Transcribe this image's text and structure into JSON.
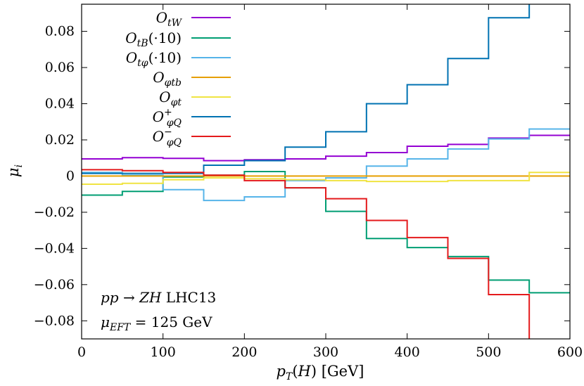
{
  "chart_data": {
    "type": "line",
    "title": "",
    "xlabel": "p_T(H) [GeV]",
    "ylabel": "μ_i",
    "xlim": [
      0,
      600
    ],
    "ylim": [
      -0.09,
      0.095
    ],
    "x_ticks": [
      0,
      100,
      200,
      300,
      400,
      500,
      600
    ],
    "x_tick_labels": [
      "0",
      "100",
      "200",
      "300",
      "400",
      "500",
      "600"
    ],
    "y_ticks": [
      -0.08,
      -0.06,
      -0.04,
      -0.02,
      0,
      0.02,
      0.04,
      0.06,
      0.08
    ],
    "y_tick_labels": [
      "−0.08",
      "−0.06",
      "−0.04",
      "−0.02",
      "0",
      "0.02",
      "0.04",
      "0.06",
      "0.08"
    ],
    "grid": false,
    "legend_position": "top-left",
    "step_style": "histogram",
    "bin_edges": [
      0,
      50,
      100,
      150,
      200,
      250,
      300,
      350,
      400,
      450,
      500,
      550,
      600
    ],
    "annotations": [
      "pp → ZH LHC13",
      "μ_EFT = 125 GeV"
    ],
    "series": [
      {
        "name": "O_tW",
        "color": "#9400d3",
        "values": [
          0.0095,
          0.0102,
          0.0098,
          0.0085,
          0.009,
          0.0095,
          0.011,
          0.013,
          0.0165,
          0.0175,
          0.021,
          0.0225
        ]
      },
      {
        "name": "O_tB(·10)",
        "color": "#009e73",
        "values": [
          -0.0105,
          -0.0085,
          -0.0005,
          0.0005,
          0.0025,
          -0.0065,
          -0.0195,
          -0.0345,
          -0.0395,
          -0.0445,
          -0.0575,
          -0.0645
        ]
      },
      {
        "name": "O_tφ(·10)",
        "color": "#56b4e9",
        "values": [
          0.002,
          0.0005,
          -0.0075,
          -0.0135,
          -0.0115,
          -0.0025,
          -0.001,
          0.0055,
          0.0095,
          0.015,
          0.0205,
          0.026
        ]
      },
      {
        "name": "O_φtb",
        "color": "#e69f00",
        "values": [
          0,
          0,
          0,
          0,
          0,
          0,
          0,
          0,
          0,
          0,
          0,
          0
        ]
      },
      {
        "name": "O_φt",
        "color": "#f0e442",
        "values": [
          -0.0045,
          -0.004,
          -0.002,
          -0.001,
          -0.0015,
          -0.002,
          -0.0025,
          -0.003,
          -0.003,
          -0.0025,
          -0.0025,
          0.002
        ]
      },
      {
        "name": "O+_φQ",
        "color": "#0072b2",
        "values": [
          0.0015,
          0.0015,
          0.0015,
          0.006,
          0.0085,
          0.016,
          0.0245,
          0.04,
          0.0505,
          0.065,
          0.0875,
          0.1
        ]
      },
      {
        "name": "O−_φQ",
        "color": "#e41a1c",
        "values": [
          0.0035,
          0.003,
          0.002,
          0.0005,
          -0.0025,
          -0.0065,
          -0.0125,
          -0.0245,
          -0.034,
          -0.0455,
          -0.0655,
          -0.1
        ]
      }
    ]
  }
}
